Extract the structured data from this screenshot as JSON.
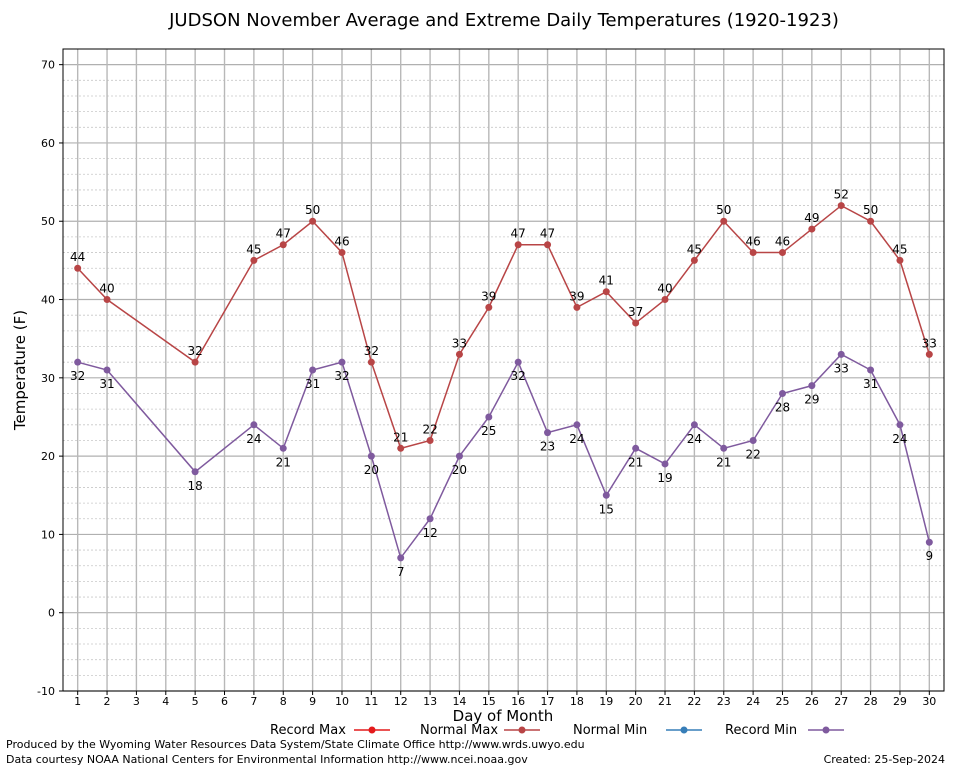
{
  "chart_data": {
    "type": "line",
    "title": "JUDSON November Average and Extreme Daily Temperatures (1920-1923)",
    "xlabel": "Day of Month",
    "ylabel": "Temperature (F)",
    "xlim": [
      0.5,
      30.5
    ],
    "ylim": [
      -10,
      72
    ],
    "x_ticks": [
      1,
      2,
      3,
      4,
      5,
      6,
      7,
      8,
      9,
      10,
      11,
      12,
      13,
      14,
      15,
      16,
      17,
      18,
      19,
      20,
      21,
      22,
      23,
      24,
      25,
      26,
      27,
      28,
      29,
      30
    ],
    "y_ticks": [
      -10,
      0,
      10,
      20,
      30,
      40,
      50,
      60,
      70
    ],
    "grid": true,
    "legend_position": "bottom",
    "series": [
      {
        "name": "Record Max",
        "color": "#e41a1c",
        "x": [],
        "values": []
      },
      {
        "name": "Normal Max",
        "color": "#b84546",
        "x": [
          1,
          2,
          5,
          7,
          8,
          9,
          10,
          11,
          12,
          13,
          14,
          15,
          16,
          17,
          18,
          19,
          20,
          21,
          22,
          23,
          24,
          25,
          26,
          27,
          28,
          29,
          30
        ],
        "values": [
          44,
          40,
          32,
          45,
          47,
          50,
          46,
          32,
          21,
          22,
          33,
          39,
          47,
          47,
          39,
          41,
          37,
          40,
          45,
          50,
          46,
          46,
          49,
          52,
          50,
          45,
          33
        ]
      },
      {
        "name": "Normal Min",
        "color": "#377eb8",
        "x": [],
        "values": []
      },
      {
        "name": "Record Min",
        "color": "#7f5a9e",
        "x": [
          1,
          2,
          5,
          7,
          8,
          9,
          10,
          11,
          12,
          13,
          14,
          15,
          16,
          17,
          18,
          19,
          20,
          21,
          22,
          23,
          24,
          25,
          26,
          27,
          28,
          29,
          30
        ],
        "values": [
          32,
          31,
          18,
          24,
          21,
          31,
          32,
          20,
          7,
          12,
          20,
          25,
          32,
          23,
          24,
          15,
          21,
          19,
          24,
          21,
          22,
          28,
          29,
          33,
          31,
          24,
          9
        ]
      }
    ]
  },
  "footer": {
    "credit_line1": "Produced by the Wyoming Water Resources Data System/State Climate Office http://www.wrds.uwyo.edu",
    "credit_line2": "Data courtesy NOAA National Centers for Environmental Information http://www.ncei.noaa.gov",
    "created": "Created:  25-Sep-2024"
  }
}
